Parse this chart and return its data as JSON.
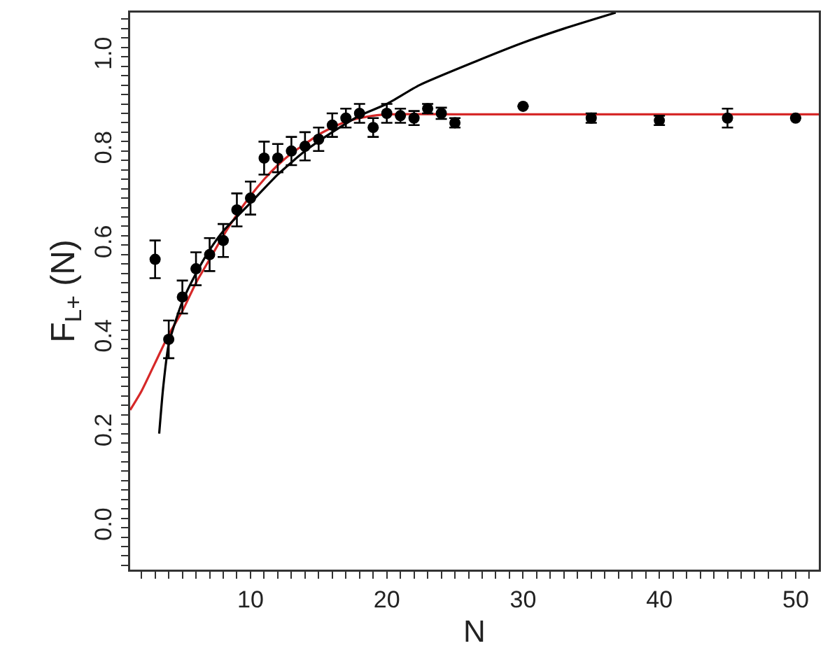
{
  "chart_data": {
    "type": "scatter",
    "xlabel": "N",
    "ylabel": "F$_{L+}$ (N)",
    "xlim": [
      1.17,
      51.7
    ],
    "ylim": [
      -0.089,
      1.094
    ],
    "xticks": [
      {
        "value": 2,
        "label": null
      },
      {
        "value": 3,
        "label": null
      },
      {
        "value": 4,
        "label": null
      },
      {
        "value": 5,
        "label": null
      },
      {
        "value": 6,
        "label": null
      },
      {
        "value": 7,
        "label": null
      },
      {
        "value": 8,
        "label": null
      },
      {
        "value": 9,
        "label": null
      },
      10,
      {
        "value": 11,
        "label": null
      },
      {
        "value": 12,
        "label": null
      },
      {
        "value": 13,
        "label": null
      },
      {
        "value": 14,
        "label": null
      },
      {
        "value": 15,
        "label": null
      },
      {
        "value": 16,
        "label": null
      },
      {
        "value": 17,
        "label": null
      },
      {
        "value": 18,
        "label": null
      },
      {
        "value": 19,
        "label": null
      },
      20,
      {
        "value": 21,
        "label": null
      },
      {
        "value": 22,
        "label": null
      },
      {
        "value": 23,
        "label": null
      },
      {
        "value": 24,
        "label": null
      },
      {
        "value": 25,
        "label": null
      },
      {
        "value": 26,
        "label": null
      },
      {
        "value": 27,
        "label": null
      },
      {
        "value": 28,
        "label": null
      },
      {
        "value": 29,
        "label": null
      },
      30,
      {
        "value": 31,
        "label": null
      },
      {
        "value": 32,
        "label": null
      },
      {
        "value": 33,
        "label": null
      },
      {
        "value": 34,
        "label": null
      },
      {
        "value": 35,
        "label": null
      },
      {
        "value": 36,
        "label": null
      },
      {
        "value": 37,
        "label": null
      },
      {
        "value": 38,
        "label": null
      },
      {
        "value": 39,
        "label": null
      },
      40,
      {
        "value": 41,
        "label": null
      },
      {
        "value": 42,
        "label": null
      },
      {
        "value": 43,
        "label": null
      },
      {
        "value": 44,
        "label": null
      },
      {
        "value": 45,
        "label": null
      },
      {
        "value": 46,
        "label": null
      },
      {
        "value": 47,
        "label": null
      },
      {
        "value": 48,
        "label": null
      },
      {
        "value": 49,
        "label": null
      },
      50,
      {
        "value": 51,
        "label": null
      }
    ],
    "yticks": [
      {
        "value": -0.08,
        "label": null
      },
      {
        "value": -0.06,
        "label": null
      },
      {
        "value": -0.04,
        "label": null
      },
      {
        "value": -0.02,
        "label": null
      },
      {
        "value": 0,
        "label": "0.0"
      },
      {
        "value": 0.02,
        "label": null
      },
      {
        "value": 0.04,
        "label": null
      },
      {
        "value": 0.06,
        "label": null
      },
      {
        "value": 0.08,
        "label": null
      },
      {
        "value": 0.1,
        "label": null
      },
      {
        "value": 0.12,
        "label": null
      },
      {
        "value": 0.14,
        "label": null
      },
      {
        "value": 0.16,
        "label": null
      },
      {
        "value": 0.18,
        "label": null
      },
      0.2,
      {
        "value": 0.22,
        "label": null
      },
      {
        "value": 0.24,
        "label": null
      },
      {
        "value": 0.26,
        "label": null
      },
      {
        "value": 0.28,
        "label": null
      },
      {
        "value": 0.3,
        "label": null
      },
      {
        "value": 0.32,
        "label": null
      },
      {
        "value": 0.34,
        "label": null
      },
      {
        "value": 0.36,
        "label": null
      },
      {
        "value": 0.38,
        "label": null
      },
      0.4,
      {
        "value": 0.42,
        "label": null
      },
      {
        "value": 0.44,
        "label": null
      },
      {
        "value": 0.46,
        "label": null
      },
      {
        "value": 0.48,
        "label": null
      },
      {
        "value": 0.5,
        "label": null
      },
      {
        "value": 0.52,
        "label": null
      },
      {
        "value": 0.54,
        "label": null
      },
      {
        "value": 0.56,
        "label": null
      },
      {
        "value": 0.58,
        "label": null
      },
      0.6,
      {
        "value": 0.62,
        "label": null
      },
      {
        "value": 0.64,
        "label": null
      },
      {
        "value": 0.66,
        "label": null
      },
      {
        "value": 0.68,
        "label": null
      },
      {
        "value": 0.7,
        "label": null
      },
      {
        "value": 0.72,
        "label": null
      },
      {
        "value": 0.74,
        "label": null
      },
      {
        "value": 0.76,
        "label": null
      },
      {
        "value": 0.78,
        "label": null
      },
      0.8,
      {
        "value": 0.82,
        "label": null
      },
      {
        "value": 0.84,
        "label": null
      },
      {
        "value": 0.86,
        "label": null
      },
      {
        "value": 0.88,
        "label": null
      },
      {
        "value": 0.9,
        "label": null
      },
      {
        "value": 0.92,
        "label": null
      },
      {
        "value": 0.94,
        "label": null
      },
      {
        "value": 0.96,
        "label": null
      },
      {
        "value": 0.98,
        "label": null
      },
      {
        "value": 1,
        "label": "1.0"
      },
      {
        "value": 1.02,
        "label": null
      },
      {
        "value": 1.04,
        "label": null
      },
      {
        "value": 1.06,
        "label": null
      },
      {
        "value": 1.08,
        "label": null
      }
    ],
    "series": [
      {
        "type": "line",
        "marker": "none",
        "color": "#d62828",
        "x": [
          1.17,
          2,
          3,
          4,
          5,
          6,
          7,
          8,
          9,
          10,
          11,
          12,
          13,
          14,
          15,
          16,
          17,
          18,
          19,
          20,
          25,
          51.7
        ],
        "values": [
          0.25,
          0.29,
          0.35,
          0.41,
          0.46,
          0.52,
          0.57,
          0.62,
          0.665,
          0.705,
          0.74,
          0.77,
          0.795,
          0.815,
          0.835,
          0.85,
          0.862,
          0.87,
          0.875,
          0.878,
          0.878,
          0.878
        ]
      },
      {
        "type": "line",
        "marker": "none",
        "color": "#000000",
        "x": [
          3.3,
          3.6,
          4,
          5,
          6,
          7,
          8,
          10,
          12,
          14,
          16,
          18,
          20,
          22.4,
          26.5,
          30,
          33,
          36.8
        ],
        "values": [
          0.2,
          0.3,
          0.39,
          0.48,
          0.54,
          0.59,
          0.63,
          0.69,
          0.75,
          0.8,
          0.84,
          0.875,
          0.9,
          0.94,
          0.99,
          1.03,
          1.06,
          1.094
        ]
      },
      {
        "marker": "circle",
        "color": "#000000",
        "x": [
          3,
          4,
          5,
          6,
          7,
          8,
          9,
          10,
          11,
          12,
          13,
          14,
          15,
          16,
          17,
          18,
          19,
          20,
          21,
          22,
          23,
          24,
          25,
          30,
          35,
          40,
          45,
          50
        ],
        "values": [
          0.57,
          0.4,
          0.49,
          0.55,
          0.58,
          0.61,
          0.675,
          0.7,
          0.785,
          0.785,
          0.8,
          0.81,
          0.825,
          0.855,
          0.87,
          0.88,
          0.85,
          0.88,
          0.875,
          0.87,
          0.89,
          0.88,
          0.86,
          0.895,
          0.87,
          0.865,
          0.87,
          0.87
        ],
        "errors": [
          0.04,
          0.04,
          0.035,
          0.035,
          0.035,
          0.035,
          0.035,
          0.035,
          0.035,
          0.03,
          0.03,
          0.03,
          0.025,
          0.025,
          0.02,
          0.02,
          0.02,
          0.02,
          0.015,
          0.015,
          0.01,
          0.012,
          0.01,
          null,
          0.01,
          0.01,
          0.02,
          null
        ]
      }
    ]
  }
}
